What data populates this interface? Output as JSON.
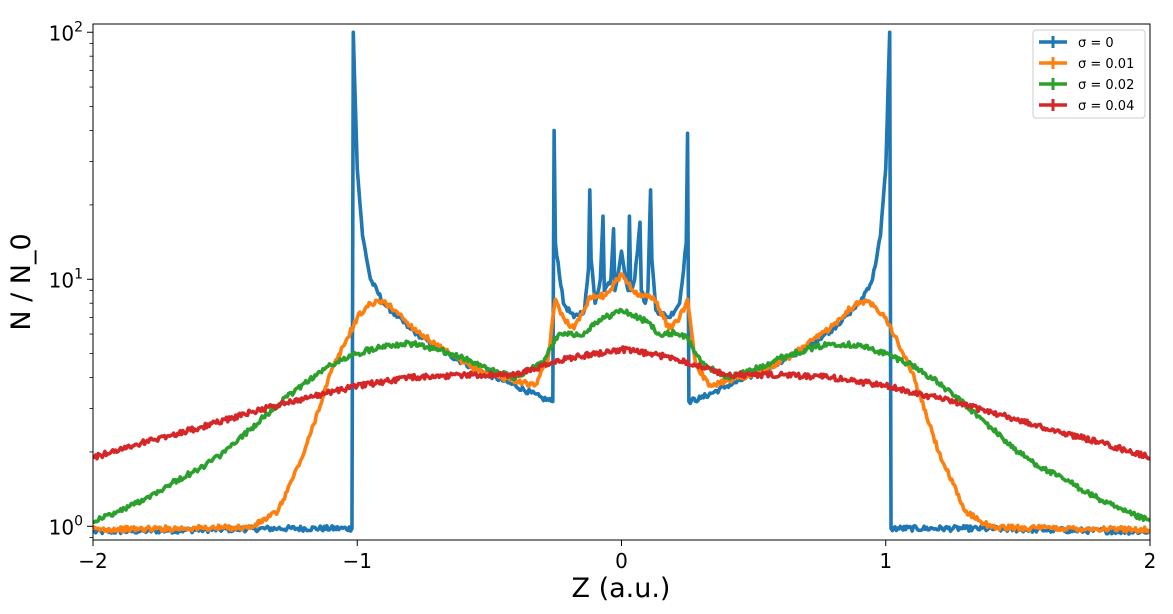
{
  "chart_data": {
    "type": "line",
    "xlabel": "Z (a.u.)",
    "ylabel": "N / N_0",
    "xlim": [
      -2,
      2
    ],
    "ylim": [
      0.88,
      108
    ],
    "yscale": "log",
    "grid": false,
    "legend_position": "top-right",
    "x_ticks": [
      {
        "value": -2,
        "label": "−2"
      },
      {
        "value": -1,
        "label": "−1"
      },
      {
        "value": 0,
        "label": "0"
      },
      {
        "value": 1,
        "label": "1"
      },
      {
        "value": 2,
        "label": "2"
      }
    ],
    "y_ticks": [
      {
        "value": 1,
        "base": "10",
        "exp": "0"
      },
      {
        "value": 10,
        "base": "10",
        "exp": "1"
      },
      {
        "value": 100,
        "base": "10",
        "exp": "2"
      }
    ],
    "series": [
      {
        "name": "σ = 0",
        "color": "#1f77b4",
        "points": [
          [
            -2.0,
            0.95
          ],
          [
            -1.3,
            0.98
          ],
          [
            -1.02,
            0.98
          ],
          [
            -1.015,
            100
          ],
          [
            -1.0,
            28
          ],
          [
            -0.98,
            15
          ],
          [
            -0.95,
            10
          ],
          [
            -0.9,
            8
          ],
          [
            -0.8,
            6.3
          ],
          [
            -0.7,
            5.3
          ],
          [
            -0.6,
            4.6
          ],
          [
            -0.5,
            4.1
          ],
          [
            -0.4,
            3.7
          ],
          [
            -0.3,
            3.3
          ],
          [
            -0.26,
            3.2
          ],
          [
            -0.255,
            40
          ],
          [
            -0.25,
            14
          ],
          [
            -0.22,
            8
          ],
          [
            -0.18,
            7
          ],
          [
            -0.14,
            7.5
          ],
          [
            -0.125,
            11
          ],
          [
            -0.12,
            23
          ],
          [
            -0.115,
            12
          ],
          [
            -0.1,
            8
          ],
          [
            -0.08,
            10
          ],
          [
            -0.07,
            18
          ],
          [
            -0.065,
            9
          ],
          [
            -0.04,
            10
          ],
          [
            -0.03,
            16
          ],
          [
            -0.025,
            9
          ],
          [
            -0.01,
            11
          ],
          [
            0.0,
            13
          ],
          [
            0.01,
            11
          ],
          [
            0.025,
            9
          ],
          [
            0.03,
            18
          ],
          [
            0.035,
            9
          ],
          [
            0.05,
            10
          ],
          [
            0.07,
            17
          ],
          [
            0.075,
            9
          ],
          [
            0.09,
            8
          ],
          [
            0.1,
            9
          ],
          [
            0.11,
            23
          ],
          [
            0.115,
            12
          ],
          [
            0.13,
            7.5
          ],
          [
            0.18,
            7
          ],
          [
            0.22,
            8
          ],
          [
            0.245,
            14
          ],
          [
            0.25,
            39
          ],
          [
            0.255,
            3.2
          ],
          [
            0.3,
            3.3
          ],
          [
            0.4,
            3.7
          ],
          [
            0.5,
            4.1
          ],
          [
            0.6,
            4.6
          ],
          [
            0.7,
            5.3
          ],
          [
            0.8,
            6.3
          ],
          [
            0.9,
            8
          ],
          [
            0.95,
            10
          ],
          [
            0.98,
            15
          ],
          [
            1.0,
            28
          ],
          [
            1.015,
            100
          ],
          [
            1.02,
            0.98
          ],
          [
            1.3,
            0.98
          ],
          [
            2.0,
            0.95
          ]
        ]
      },
      {
        "name": "σ = 0.01",
        "color": "#ff7f0e",
        "points": [
          [
            -2.0,
            0.97
          ],
          [
            -1.4,
            0.99
          ],
          [
            -1.3,
            1.15
          ],
          [
            -1.2,
            2.0
          ],
          [
            -1.1,
            4.2
          ],
          [
            -1.0,
            7.0
          ],
          [
            -0.95,
            8.0
          ],
          [
            -0.9,
            8.1
          ],
          [
            -0.85,
            7.4
          ],
          [
            -0.8,
            6.5
          ],
          [
            -0.7,
            5.4
          ],
          [
            -0.6,
            4.6
          ],
          [
            -0.5,
            4.1
          ],
          [
            -0.4,
            3.9
          ],
          [
            -0.33,
            3.7
          ],
          [
            -0.28,
            4.6
          ],
          [
            -0.25,
            8.3
          ],
          [
            -0.22,
            7.0
          ],
          [
            -0.18,
            6.3
          ],
          [
            -0.12,
            8.5
          ],
          [
            -0.06,
            8.6
          ],
          [
            0.0,
            10.5
          ],
          [
            0.06,
            8.6
          ],
          [
            0.12,
            8.5
          ],
          [
            0.18,
            6.3
          ],
          [
            0.22,
            7.0
          ],
          [
            0.25,
            8.3
          ],
          [
            0.28,
            4.6
          ],
          [
            0.33,
            3.7
          ],
          [
            0.4,
            3.9
          ],
          [
            0.5,
            4.1
          ],
          [
            0.6,
            4.6
          ],
          [
            0.7,
            5.4
          ],
          [
            0.8,
            6.5
          ],
          [
            0.85,
            7.4
          ],
          [
            0.9,
            8.1
          ],
          [
            0.95,
            8.0
          ],
          [
            1.0,
            7.0
          ],
          [
            1.1,
            4.2
          ],
          [
            1.2,
            2.0
          ],
          [
            1.3,
            1.15
          ],
          [
            1.4,
            0.99
          ],
          [
            2.0,
            0.97
          ]
        ]
      },
      {
        "name": "σ = 0.02",
        "color": "#2ca02c",
        "points": [
          [
            -2.0,
            1.05
          ],
          [
            -1.9,
            1.15
          ],
          [
            -1.8,
            1.3
          ],
          [
            -1.7,
            1.5
          ],
          [
            -1.6,
            1.7
          ],
          [
            -1.5,
            2.0
          ],
          [
            -1.4,
            2.5
          ],
          [
            -1.3,
            3.1
          ],
          [
            -1.2,
            3.8
          ],
          [
            -1.1,
            4.5
          ],
          [
            -1.0,
            5.0
          ],
          [
            -0.9,
            5.4
          ],
          [
            -0.8,
            5.5
          ],
          [
            -0.7,
            5.2
          ],
          [
            -0.6,
            4.8
          ],
          [
            -0.5,
            4.3
          ],
          [
            -0.4,
            4.0
          ],
          [
            -0.3,
            4.6
          ],
          [
            -0.25,
            5.8
          ],
          [
            -0.2,
            6.1
          ],
          [
            -0.15,
            5.9
          ],
          [
            -0.1,
            6.7
          ],
          [
            0.0,
            7.5
          ],
          [
            0.1,
            6.7
          ],
          [
            0.15,
            5.9
          ],
          [
            0.2,
            6.1
          ],
          [
            0.25,
            5.8
          ],
          [
            0.3,
            4.6
          ],
          [
            0.4,
            4.0
          ],
          [
            0.5,
            4.3
          ],
          [
            0.6,
            4.8
          ],
          [
            0.7,
            5.2
          ],
          [
            0.8,
            5.5
          ],
          [
            0.9,
            5.4
          ],
          [
            1.0,
            5.0
          ],
          [
            1.1,
            4.5
          ],
          [
            1.2,
            3.8
          ],
          [
            1.3,
            3.1
          ],
          [
            1.4,
            2.5
          ],
          [
            1.5,
            2.0
          ],
          [
            1.6,
            1.7
          ],
          [
            1.7,
            1.5
          ],
          [
            1.8,
            1.3
          ],
          [
            1.9,
            1.15
          ],
          [
            2.0,
            1.05
          ]
        ]
      },
      {
        "name": "σ = 0.04",
        "color": "#d62728",
        "points": [
          [
            -2.0,
            1.9
          ],
          [
            -1.8,
            2.2
          ],
          [
            -1.6,
            2.5
          ],
          [
            -1.4,
            2.9
          ],
          [
            -1.2,
            3.3
          ],
          [
            -1.0,
            3.7
          ],
          [
            -0.8,
            4.0
          ],
          [
            -0.6,
            4.1
          ],
          [
            -0.4,
            4.1
          ],
          [
            -0.2,
            4.8
          ],
          [
            0.0,
            5.2
          ],
          [
            0.2,
            4.8
          ],
          [
            0.4,
            4.1
          ],
          [
            0.6,
            4.1
          ],
          [
            0.8,
            4.0
          ],
          [
            1.0,
            3.7
          ],
          [
            1.2,
            3.3
          ],
          [
            1.4,
            2.9
          ],
          [
            1.6,
            2.5
          ],
          [
            1.8,
            2.2
          ],
          [
            2.0,
            1.9
          ]
        ]
      }
    ]
  }
}
